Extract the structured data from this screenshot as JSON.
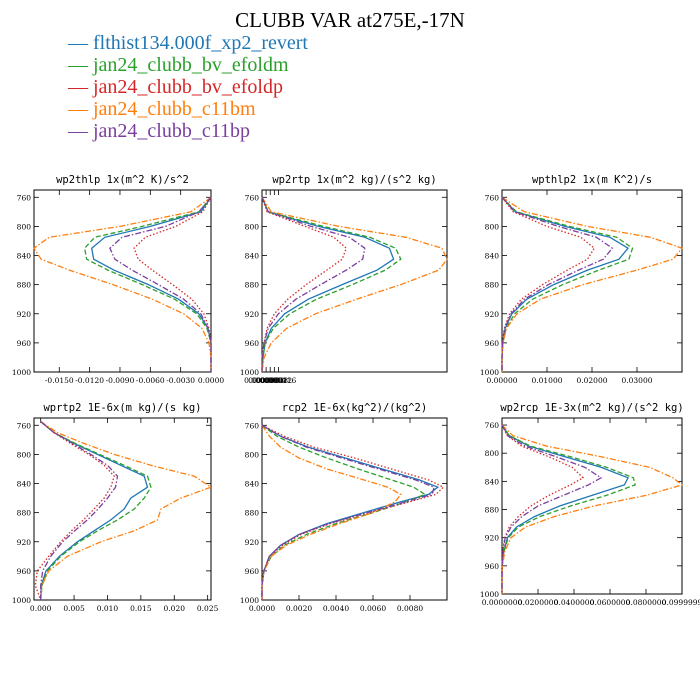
{
  "title": "CLUBB VAR at275E,-17N",
  "legend": [
    {
      "label": "flthist134.000f_xp2_revert",
      "color": "#1f77b4",
      "dash": "solid"
    },
    {
      "label": "jan24_clubb_bv_efoldm",
      "color": "#2ca02c",
      "dash": "dashed"
    },
    {
      "label": "jan24_clubb_bv_efoldp",
      "color": "#d62728",
      "dash": "dotted"
    },
    {
      "label": "jan24_clubb_c11bm",
      "color": "#ff7f0e",
      "dash": "dashdot"
    },
    {
      "label": "jan24_clubb_c11bp",
      "color": "#7b3f9e",
      "dash": "dashdot"
    }
  ],
  "chart_data": [
    {
      "type": "line",
      "title": "wp2thlp  1x(m^2 K)/s^2",
      "xlim": [
        -0.0175,
        0
      ],
      "ylim": [
        1000,
        750
      ],
      "xticks": [
        -0.015,
        -0.012,
        -0.009,
        -0.006,
        -0.003,
        0.0
      ],
      "xtick_labels": [
        "-0.0150",
        "-0.0120",
        "-0.0090",
        "-0.0060",
        "-0.0030",
        "0.0000"
      ],
      "yticks": [
        760,
        800,
        840,
        880,
        920,
        960,
        1000
      ],
      "y": [
        760,
        780,
        800,
        815,
        830,
        845,
        860,
        880,
        900,
        920,
        940,
        960,
        980,
        1000
      ],
      "series": [
        {
          "values": [
            0,
            -0.001,
            -0.006,
            -0.0105,
            -0.0118,
            -0.0116,
            -0.0096,
            -0.0062,
            -0.0032,
            -0.0012,
            -0.0003,
            0,
            0,
            0
          ]
        },
        {
          "values": [
            0,
            -0.0012,
            -0.0068,
            -0.0115,
            -0.0125,
            -0.0123,
            -0.0102,
            -0.0068,
            -0.0036,
            -0.0014,
            -0.0004,
            0,
            0,
            0
          ]
        },
        {
          "values": [
            0,
            -0.0008,
            -0.0035,
            -0.0065,
            -0.0076,
            -0.0072,
            -0.0058,
            -0.0038,
            -0.0019,
            -0.0007,
            -0.0002,
            0,
            0,
            0
          ]
        },
        {
          "values": [
            0,
            -0.002,
            -0.009,
            -0.016,
            -0.0175,
            -0.0168,
            -0.014,
            -0.0097,
            -0.0058,
            -0.0027,
            -0.0009,
            -0.0002,
            0,
            0
          ]
        },
        {
          "values": [
            0,
            -0.0012,
            -0.0045,
            -0.0088,
            -0.01,
            -0.0095,
            -0.0078,
            -0.0052,
            -0.0027,
            -0.001,
            -0.0003,
            0,
            0,
            0
          ]
        }
      ]
    },
    {
      "type": "line",
      "title": "wp2rtp  1x(m^2 kg)/(s^2 kg)",
      "xlim": [
        0,
        0.00018
      ],
      "ylim": [
        1000,
        750
      ],
      "xticks": [
        0,
        4e-06,
        8e-06,
        1.2e-05,
        1.6e-05
      ],
      "xtick_labels": [
        "0.000000",
        "0.000004",
        "0.000008",
        "0.000012",
        "0.000016"
      ],
      "yticks": [
        760,
        800,
        840,
        880,
        920,
        960,
        1000
      ],
      "y": [
        760,
        780,
        800,
        815,
        830,
        845,
        860,
        880,
        900,
        920,
        940,
        960,
        980,
        1000
      ],
      "series": [
        {
          "values": [
            0,
            6e-06,
            5.5e-05,
            0.0001,
            0.000124,
            0.000128,
            0.000112,
            7.8e-05,
            4.5e-05,
            2.2e-05,
            9e-06,
            3e-06,
            1e-06,
            0
          ]
        },
        {
          "values": [
            0,
            6e-06,
            6e-05,
            0.000105,
            0.00013,
            0.000135,
            0.00012,
            8.8e-05,
            5.3e-05,
            2.7e-05,
            1.1e-05,
            3e-06,
            1e-06,
            0
          ]
        },
        {
          "values": [
            0,
            5e-06,
            4.2e-05,
            7e-05,
            8.2e-05,
            7.8e-05,
            6.3e-05,
            4.3e-05,
            2.5e-05,
            1.2e-05,
            5e-06,
            2e-06,
            0,
            0
          ]
        },
        {
          "values": [
            0,
            9e-06,
            7.5e-05,
            0.00014,
            0.000175,
            0.00018,
            0.000172,
            0.000135,
            9.2e-05,
            5.2e-05,
            2.4e-05,
            9e-06,
            2e-06,
            0
          ]
        },
        {
          "values": [
            0,
            6e-06,
            4.8e-05,
            8.5e-05,
            0.0001,
            9.8e-05,
            8.2e-05,
            5.7e-05,
            3.3e-05,
            1.6e-05,
            6e-06,
            2e-06,
            0,
            0
          ]
        }
      ]
    },
    {
      "type": "line",
      "title": "wpthlp2  1x(m K^2)/s",
      "xlim": [
        0,
        0.04
      ],
      "ylim": [
        1000,
        750
      ],
      "xticks": [
        0,
        0.01,
        0.02,
        0.03
      ],
      "xtick_labels": [
        "0.00000",
        "0.01000",
        "0.02000",
        "0.03000"
      ],
      "yticks": [
        760,
        800,
        840,
        880,
        920,
        960,
        1000
      ],
      "y": [
        760,
        780,
        800,
        815,
        830,
        845,
        860,
        880,
        900,
        920,
        940,
        960,
        980,
        1000
      ],
      "series": [
        {
          "values": [
            0,
            0.003,
            0.014,
            0.024,
            0.028,
            0.026,
            0.019,
            0.0115,
            0.0055,
            0.0022,
            0.0007,
            0.0002,
            0,
            0
          ]
        },
        {
          "values": [
            0,
            0.0032,
            0.015,
            0.0255,
            0.029,
            0.0282,
            0.0215,
            0.0135,
            0.0068,
            0.0028,
            0.0009,
            0.0002,
            0,
            0
          ]
        },
        {
          "values": [
            0,
            0.0025,
            0.01,
            0.0175,
            0.0205,
            0.019,
            0.0145,
            0.009,
            0.0043,
            0.0017,
            0.0005,
            0.0001,
            0,
            0
          ]
        },
        {
          "values": [
            0,
            0.005,
            0.019,
            0.033,
            0.04,
            0.038,
            0.03,
            0.018,
            0.0085,
            0.0033,
            0.001,
            0.0002,
            0,
            0
          ]
        },
        {
          "values": [
            0,
            0.0028,
            0.0125,
            0.021,
            0.0245,
            0.0225,
            0.017,
            0.0103,
            0.005,
            0.002,
            0.0006,
            0.0001,
            0,
            0
          ]
        }
      ]
    },
    {
      "type": "line",
      "title": "wprtp2  1E-6x(m kg)/(s kg)",
      "xlim": [
        -0.001,
        0.0255
      ],
      "ylim": [
        1000,
        750
      ],
      "xticks": [
        0,
        0.005,
        0.01,
        0.015,
        0.02,
        0.025
      ],
      "xtick_labels": [
        "0.000",
        "0.005",
        "0.010",
        "0.015",
        "0.020",
        "0.025"
      ],
      "yticks": [
        760,
        800,
        840,
        880,
        920,
        960,
        1000
      ],
      "y": [
        755,
        770,
        785,
        800,
        815,
        830,
        845,
        860,
        875,
        890,
        905,
        920,
        940,
        960,
        980,
        1000
      ],
      "series": [
        {
          "values": [
            0,
            0.002,
            0.005,
            0.0085,
            0.012,
            0.0155,
            0.016,
            0.0135,
            0.0125,
            0.0105,
            0.008,
            0.0055,
            0.0028,
            0.0008,
            0.0001,
            0
          ]
        },
        {
          "values": [
            0,
            0.002,
            0.0052,
            0.0088,
            0.0125,
            0.016,
            0.0165,
            0.0155,
            0.014,
            0.0115,
            0.0085,
            0.0058,
            0.003,
            0.001,
            0.0002,
            0
          ]
        },
        {
          "values": [
            0,
            0.002,
            0.0045,
            0.0072,
            0.0095,
            0.011,
            0.0105,
            0.0095,
            0.008,
            0.0064,
            0.0046,
            0.003,
            0.0012,
            -0.0005,
            -0.0008,
            0
          ]
        },
        {
          "values": [
            0,
            0.0025,
            0.0065,
            0.011,
            0.0165,
            0.023,
            0.0255,
            0.021,
            0.018,
            0.0175,
            0.014,
            0.009,
            0.004,
            0.0012,
            0.0002,
            0
          ]
        },
        {
          "values": [
            0,
            0.002,
            0.0048,
            0.0075,
            0.01,
            0.0115,
            0.0112,
            0.01,
            0.0086,
            0.007,
            0.0051,
            0.0033,
            0.0015,
            0.0003,
            0,
            0
          ]
        }
      ]
    },
    {
      "type": "line",
      "title": "rcp2  1E-6x(kg^2)/(kg^2)",
      "xlim": [
        0,
        0.01
      ],
      "ylim": [
        1000,
        750
      ],
      "xticks": [
        0,
        0.002,
        0.004,
        0.006,
        0.008
      ],
      "xtick_labels": [
        "0.0000",
        "0.0020",
        "0.0040",
        "0.0060",
        "0.0080"
      ],
      "yticks": [
        760,
        800,
        840,
        880,
        920,
        960,
        1000
      ],
      "y": [
        760,
        775,
        790,
        805,
        820,
        835,
        845,
        855,
        865,
        880,
        895,
        910,
        925,
        940,
        960,
        980,
        1000
      ],
      "series": [
        {
          "values": [
            0,
            0.001,
            0.0025,
            0.0045,
            0.0065,
            0.0085,
            0.0095,
            0.009,
            0.0075,
            0.0055,
            0.0035,
            0.002,
            0.001,
            0.0004,
            0.0001,
            0,
            0
          ]
        },
        {
          "values": [
            0,
            0.0008,
            0.002,
            0.0035,
            0.0052,
            0.007,
            0.0082,
            0.0088,
            0.0078,
            0.006,
            0.004,
            0.0024,
            0.0012,
            0.0005,
            0.0001,
            0,
            0
          ]
        },
        {
          "values": [
            0,
            0.0012,
            0.0028,
            0.005,
            0.007,
            0.009,
            0.0098,
            0.0094,
            0.008,
            0.0058,
            0.0037,
            0.0021,
            0.0011,
            0.0004,
            0.0001,
            0,
            0
          ]
        },
        {
          "values": [
            0,
            0.0004,
            0.001,
            0.002,
            0.0035,
            0.0055,
            0.0068,
            0.0075,
            0.0072,
            0.006,
            0.0042,
            0.0026,
            0.0013,
            0.0005,
            0.0001,
            0,
            0
          ]
        },
        {
          "values": [
            0,
            0.001,
            0.0024,
            0.0043,
            0.0063,
            0.0083,
            0.0093,
            0.0092,
            0.0078,
            0.0057,
            0.0036,
            0.002,
            0.001,
            0.0004,
            0.0001,
            0,
            0
          ]
        }
      ]
    },
    {
      "type": "line",
      "title": "wp2rcp  1E-3x(m^2 kg)/(s^2 kg)",
      "xlim": [
        0,
        0.1
      ],
      "ylim": [
        1000,
        750
      ],
      "xticks": [
        0,
        0.02,
        0.04,
        0.06,
        0.08,
        0.1
      ],
      "xtick_labels": [
        "0.0000000",
        "0.0200000",
        "0.0400000",
        "0.0600000",
        "0.0800000",
        "0.0999999"
      ],
      "yticks": [
        760,
        800,
        840,
        880,
        920,
        960,
        1000
      ],
      "y": [
        760,
        775,
        790,
        805,
        820,
        835,
        845,
        860,
        875,
        890,
        905,
        920,
        940,
        960,
        980,
        1000
      ],
      "series": [
        {
          "values": [
            0,
            0.004,
            0.015,
            0.035,
            0.055,
            0.07,
            0.068,
            0.05,
            0.032,
            0.018,
            0.008,
            0.003,
            0.001,
            0,
            0,
            0
          ]
        },
        {
          "values": [
            0,
            0.004,
            0.016,
            0.038,
            0.058,
            0.073,
            0.074,
            0.058,
            0.038,
            0.021,
            0.009,
            0.0035,
            0.001,
            0,
            0,
            0
          ]
        },
        {
          "values": [
            0,
            0.003,
            0.011,
            0.026,
            0.039,
            0.045,
            0.038,
            0.026,
            0.016,
            0.009,
            0.004,
            0.0015,
            0.0004,
            0,
            0,
            0
          ]
        },
        {
          "values": [
            0,
            0.006,
            0.025,
            0.055,
            0.082,
            0.095,
            0.1,
            0.08,
            0.051,
            0.029,
            0.013,
            0.005,
            0.0015,
            0.0003,
            0,
            0
          ]
        },
        {
          "values": [
            0,
            0.003,
            0.013,
            0.03,
            0.046,
            0.055,
            0.048,
            0.034,
            0.02,
            0.011,
            0.005,
            0.0018,
            0.0005,
            0,
            0,
            0
          ]
        }
      ]
    }
  ]
}
